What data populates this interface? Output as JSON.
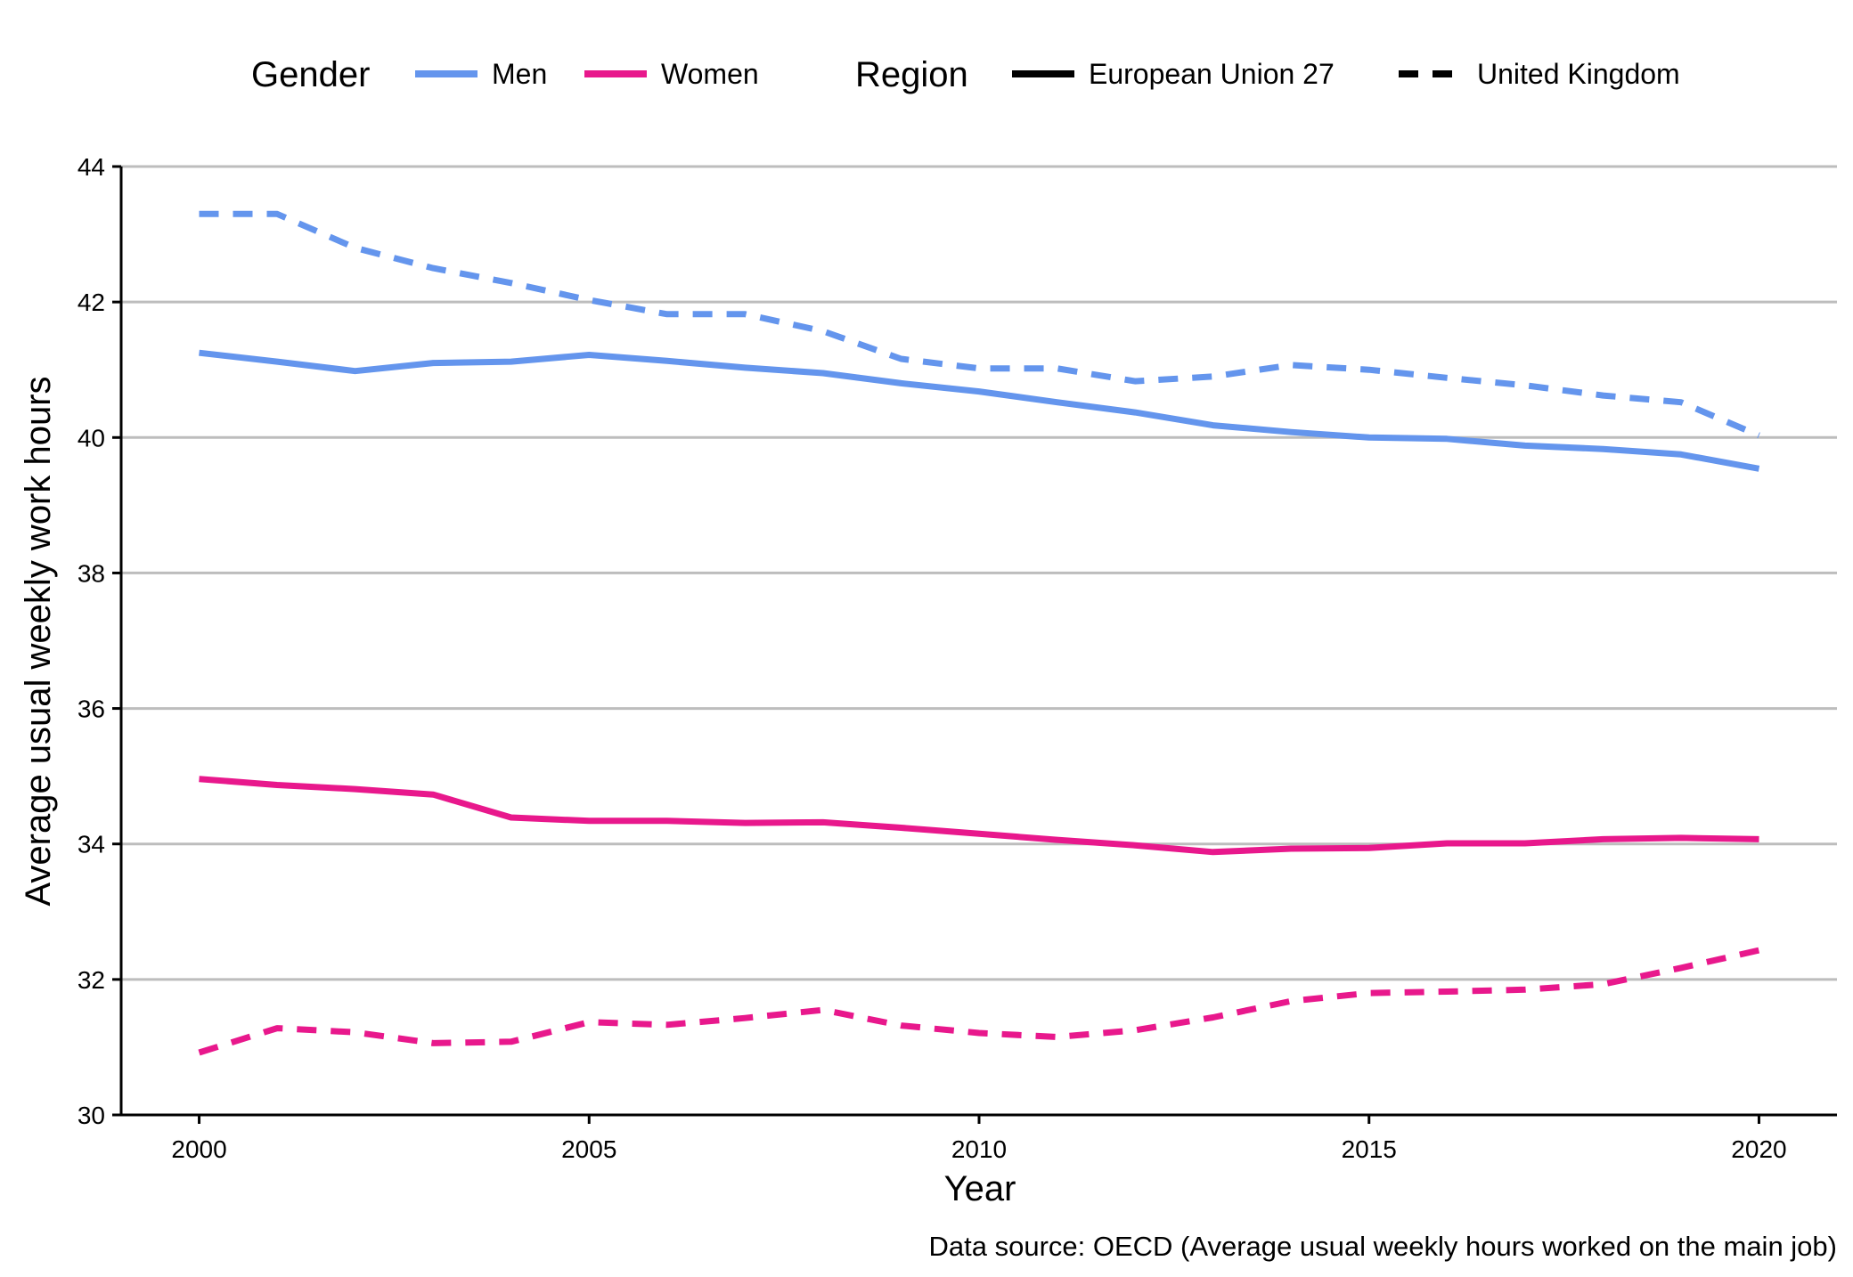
{
  "chart_data": {
    "type": "line",
    "xlabel": "Year",
    "ylabel": "Average usual weekly work hours",
    "caption": "Data source: OECD (Average usual weekly hours worked on the main job)",
    "xlim": [
      1999,
      2021
    ],
    "ylim": [
      30,
      44
    ],
    "x_ticks": [
      2000,
      2005,
      2010,
      2015,
      2020
    ],
    "y_ticks": [
      30,
      32,
      34,
      36,
      38,
      40,
      42,
      44
    ],
    "grid": "horizontal major lines on",
    "legend_position": "top",
    "legend": {
      "gender_title": "Gender",
      "gender_entries": [
        {
          "label": "Men",
          "color": "#6495ED"
        },
        {
          "label": "Women",
          "color": "#E8188C"
        }
      ],
      "region_title": "Region",
      "region_entries": [
        {
          "label": "European Union 27",
          "style": "solid"
        },
        {
          "label": "United Kingdom",
          "style": "dashed"
        }
      ]
    },
    "x": [
      2000,
      2001,
      2002,
      2003,
      2004,
      2005,
      2006,
      2007,
      2008,
      2009,
      2010,
      2011,
      2012,
      2013,
      2014,
      2015,
      2016,
      2017,
      2018,
      2019,
      2020
    ],
    "series": [
      {
        "gender": "Men",
        "region": "European Union 27",
        "color": "#6495ED",
        "style": "solid",
        "values": [
          41.25,
          41.12,
          40.98,
          41.1,
          41.12,
          41.22,
          41.13,
          41.03,
          40.95,
          40.8,
          40.68,
          40.52,
          40.37,
          40.18,
          40.08,
          40.0,
          39.98,
          39.88,
          39.83,
          39.75,
          39.54
        ]
      },
      {
        "gender": "Men",
        "region": "United Kingdom",
        "color": "#6495ED",
        "style": "dashed",
        "values": [
          43.3,
          43.3,
          42.8,
          42.5,
          42.28,
          42.03,
          41.82,
          41.82,
          41.57,
          41.16,
          41.02,
          41.02,
          40.83,
          40.9,
          41.07,
          41.0,
          40.88,
          40.77,
          40.62,
          40.52,
          40.03
        ]
      },
      {
        "gender": "Women",
        "region": "European Union 27",
        "color": "#E8188C",
        "style": "solid",
        "values": [
          34.96,
          34.87,
          34.81,
          34.73,
          34.39,
          34.34,
          34.34,
          34.31,
          34.32,
          34.24,
          34.15,
          34.06,
          33.98,
          33.88,
          33.93,
          33.94,
          34.01,
          34.01,
          34.07,
          34.09,
          34.07
        ]
      },
      {
        "gender": "Women",
        "region": "United Kingdom",
        "color": "#E8188C",
        "style": "dashed",
        "values": [
          30.92,
          31.28,
          31.22,
          31.06,
          31.08,
          31.37,
          31.33,
          31.43,
          31.55,
          31.32,
          31.21,
          31.15,
          31.25,
          31.44,
          31.68,
          31.8,
          31.82,
          31.85,
          31.93,
          32.17,
          32.43
        ]
      }
    ]
  }
}
